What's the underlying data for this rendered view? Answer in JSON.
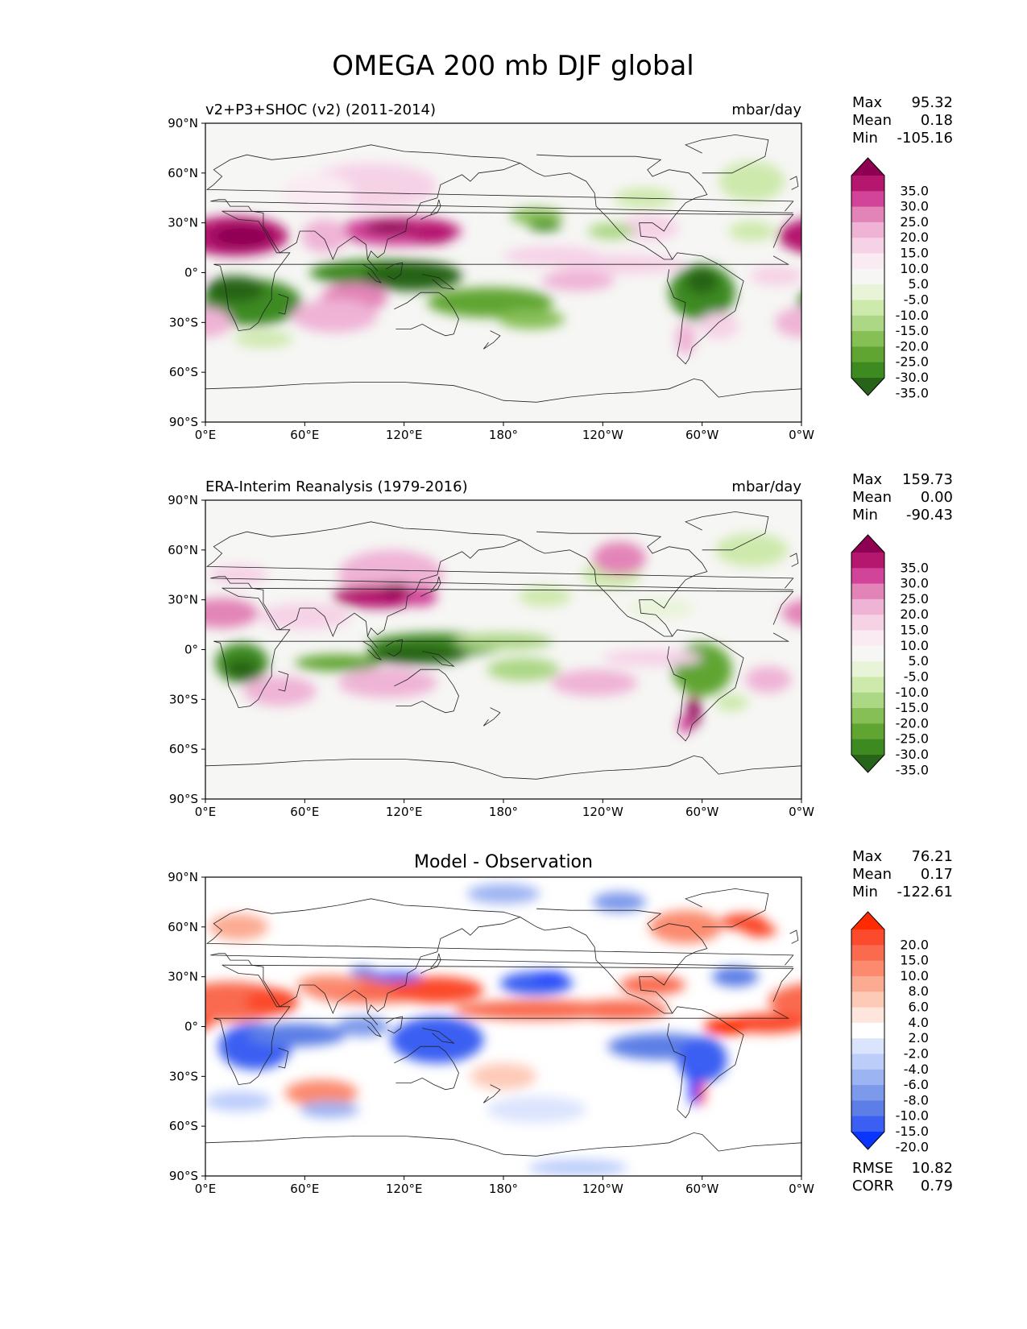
{
  "figure": {
    "title": "OMEGA 200 mb DJF global"
  },
  "chart_data": [
    {
      "type": "heatmap",
      "title": "v2+P3+SHOC (v2) (2011-2014)",
      "units": "mbar/day",
      "stats": [
        {
          "label": "Max",
          "value": "95.32"
        },
        {
          "label": "Mean",
          "value": "0.18"
        },
        {
          "label": "Min",
          "value": "-105.16"
        }
      ],
      "colorbar": {
        "labels": [
          "35.0",
          "30.0",
          "25.0",
          "20.0",
          "15.0",
          "10.0",
          "5.0",
          "-5.0",
          "-10.0",
          "-15.0",
          "-20.0",
          "-25.0",
          "-30.0",
          "-35.0"
        ],
        "colors": [
          "#8e0152",
          "#b5176f",
          "#d2449a",
          "#e384b8",
          "#efb3d6",
          "#f6d2e7",
          "#faebf3",
          "#f6f6f4",
          "#e8f4d8",
          "#cde9ac",
          "#acd785",
          "#86bf56",
          "#60a531",
          "#3d8a21",
          "#276419"
        ]
      },
      "xticks": [
        "0°E",
        "60°E",
        "120°E",
        "180°",
        "120°W",
        "60°W",
        "0°W"
      ],
      "yticks": [
        "90°N",
        "60°N",
        "30°N",
        "0°",
        "30°S",
        "60°S",
        "90°S"
      ],
      "xlim": [
        0,
        360
      ],
      "ylim": [
        -90,
        90
      ]
    },
    {
      "type": "heatmap",
      "title": "ERA-Interim Reanalysis (1979-2016)",
      "units": "mbar/day",
      "stats": [
        {
          "label": "Max",
          "value": "159.73"
        },
        {
          "label": "Mean",
          "value": "0.00"
        },
        {
          "label": "Min",
          "value": "-90.43"
        }
      ],
      "colorbar": {
        "labels": [
          "35.0",
          "30.0",
          "25.0",
          "20.0",
          "15.0",
          "10.0",
          "5.0",
          "-5.0",
          "-10.0",
          "-15.0",
          "-20.0",
          "-25.0",
          "-30.0",
          "-35.0"
        ],
        "colors": [
          "#8e0152",
          "#b5176f",
          "#d2449a",
          "#e384b8",
          "#efb3d6",
          "#f6d2e7",
          "#faebf3",
          "#f6f6f4",
          "#e8f4d8",
          "#cde9ac",
          "#acd785",
          "#86bf56",
          "#60a531",
          "#3d8a21",
          "#276419"
        ]
      },
      "xticks": [
        "0°E",
        "60°E",
        "120°E",
        "180°",
        "120°W",
        "60°W",
        "0°W"
      ],
      "yticks": [
        "90°N",
        "60°N",
        "30°N",
        "0°",
        "30°S",
        "60°S",
        "90°S"
      ],
      "xlim": [
        0,
        360
      ],
      "ylim": [
        -90,
        90
      ]
    },
    {
      "type": "heatmap",
      "title": "Model - Observation",
      "units": "",
      "stats": [
        {
          "label": "Max",
          "value": "76.21"
        },
        {
          "label": "Mean",
          "value": "0.17"
        },
        {
          "label": "Min",
          "value": "-122.61"
        }
      ],
      "extra_stats": [
        {
          "label": "RMSE",
          "value": "10.82"
        },
        {
          "label": "CORR",
          "value": "0.79"
        }
      ],
      "colorbar": {
        "labels": [
          "20.0",
          "15.0",
          "10.0",
          "8.0",
          "6.0",
          "4.0",
          "2.0",
          "-2.0",
          "-4.0",
          "-6.0",
          "-8.0",
          "-10.0",
          "-15.0",
          "-20.0"
        ],
        "colors": [
          "#ff2a00",
          "#fb4a2c",
          "#f96a4f",
          "#fb8a6e",
          "#fcab93",
          "#fdcab8",
          "#fee6dc",
          "#ffffff",
          "#dbe4fd",
          "#bccdfa",
          "#9db4f3",
          "#7d99eb",
          "#5c7ee6",
          "#3a5ff2",
          "#0a35ff"
        ]
      },
      "xticks": [
        "0°E",
        "60°E",
        "120°E",
        "180°",
        "120°W",
        "60°W",
        "0°W"
      ],
      "yticks": [
        "90°N",
        "60°N",
        "30°N",
        "0°",
        "30°S",
        "60°S",
        "90°S"
      ],
      "xlim": [
        0,
        360
      ],
      "ylim": [
        -90,
        90
      ]
    }
  ]
}
